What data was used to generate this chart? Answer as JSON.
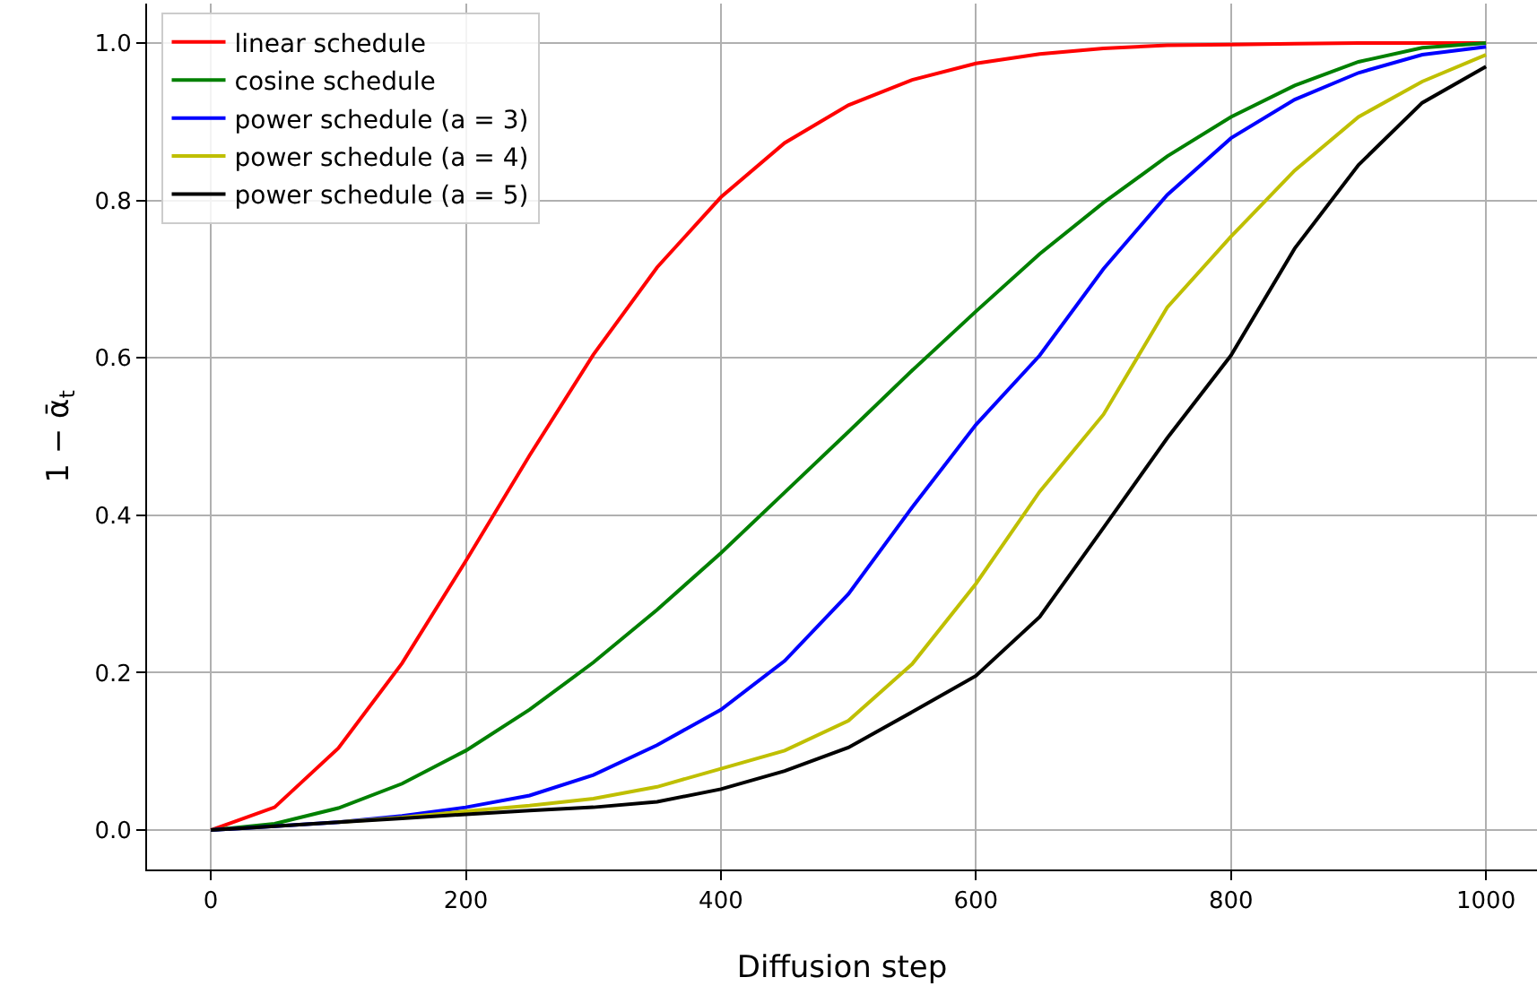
{
  "chart_data": {
    "type": "line",
    "xlabel": "Diffusion step",
    "ylabel": "1 − ᾱ$_{t}$",
    "x": [
      0,
      50,
      100,
      150,
      200,
      250,
      300,
      350,
      400,
      450,
      500,
      550,
      600,
      650,
      700,
      750,
      800,
      850,
      900,
      950,
      1000
    ],
    "series": [
      {
        "name": "linear schedule",
        "color": "#ff0000",
        "values": [
          0,
          0.029,
          0.104,
          0.212,
          0.342,
          0.476,
          0.604,
          0.715,
          0.804,
          0.873,
          0.921,
          0.953,
          0.974,
          0.986,
          0.993,
          0.997,
          0.998,
          0.999,
          1.0,
          1.0,
          1.0
        ]
      },
      {
        "name": "cosine schedule",
        "color": "#008000",
        "values": [
          0,
          0.008,
          0.028,
          0.059,
          0.101,
          0.153,
          0.213,
          0.28,
          0.352,
          0.429,
          0.506,
          0.584,
          0.659,
          0.732,
          0.797,
          0.856,
          0.906,
          0.946,
          0.976,
          0.994,
          1.0
        ]
      },
      {
        "name": "power schedule (a = 3)",
        "color": "#0000ff",
        "values": [
          0,
          0.005,
          0.01,
          0.018,
          0.029,
          0.044,
          0.07,
          0.108,
          0.153,
          0.215,
          0.3,
          0.41,
          0.515,
          0.603,
          0.713,
          0.807,
          0.879,
          0.928,
          0.962,
          0.985,
          0.995
        ]
      },
      {
        "name": "power schedule (a = 4)",
        "color": "#bfbf00",
        "values": [
          null,
          null,
          0.01,
          0.016,
          0.024,
          0.031,
          0.04,
          0.055,
          0.078,
          0.101,
          0.139,
          0.211,
          0.313,
          0.43,
          0.528,
          0.664,
          0.754,
          0.838,
          0.906,
          0.951,
          0.985
        ]
      },
      {
        "name": "power schedule (a = 5)",
        "color": "#000000",
        "values": [
          0,
          0.005,
          0.01,
          0.015,
          0.02,
          0.025,
          0.029,
          0.036,
          0.052,
          0.075,
          0.105,
          0.15,
          0.196,
          0.271,
          0.384,
          0.498,
          0.603,
          0.739,
          0.845,
          0.924,
          0.97
        ]
      }
    ],
    "xlim": [
      -50,
      1040
    ],
    "ylim": [
      -0.05,
      1.05
    ],
    "xticks": [
      0,
      200,
      400,
      600,
      800,
      1000
    ],
    "yticks": [
      {
        "value": 0,
        "label": "0.0"
      },
      {
        "value": 0.2,
        "label": "0.2"
      },
      {
        "value": 0.4,
        "label": "0.4"
      },
      {
        "value": 0.6,
        "label": "0.6"
      },
      {
        "value": 0.8,
        "label": "0.8"
      },
      {
        "value": 1,
        "label": "1.0"
      }
    ],
    "grid": true,
    "legend": "top left",
    "line_style": "solid",
    "marker": "none"
  }
}
